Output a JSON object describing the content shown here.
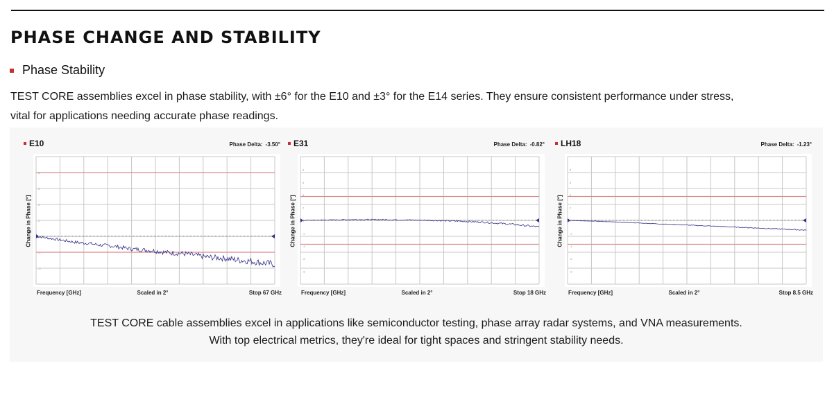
{
  "section": {
    "title": "PHASE CHANGE AND STABILITY",
    "subheading": "Phase Stability",
    "intro_line1": "TEST CORE assemblies excel in phase stability, with ±6° for the E10 and ±3° for the E14 series. They ensure consistent performance under stress,",
    "intro_line2": "vital for applications needing accurate phase readings."
  },
  "caption": {
    "line1": "TEST CORE cable assemblies excel in applications like semiconductor testing, phase array radar systems, and VNA measurements.",
    "line2": "With top electrical metrics, they're ideal for tight spaces and stringent stability needs."
  },
  "colors": {
    "accent": "#c8302f",
    "trace": "#2f2e86",
    "limit": "#d98a8a",
    "grid": "#c7c7c7"
  },
  "chart_data": [
    {
      "type": "line",
      "title": "E10",
      "phase_delta_label": "Phase Delta:",
      "phase_delta": "-3.50°",
      "xlabel": "Frequency [GHz]",
      "scale_label": "Scaled in 2°",
      "stop_label": "Stop 67 GHz",
      "ylabel": "Change in Phase [°]",
      "xlim": [
        0,
        67
      ],
      "ylim": [
        -6,
        10
      ],
      "y_tick_labels": [
        "8",
        "6",
        "4",
        "2",
        "0",
        "-2",
        "-4"
      ],
      "reference_line": 0,
      "limit_lines": [
        8,
        -2
      ],
      "series": [
        {
          "x": [
            0,
            3,
            6,
            9,
            12,
            15,
            18,
            21,
            24,
            27,
            30,
            33,
            36,
            39,
            42,
            45,
            48,
            51,
            54,
            57,
            60,
            63,
            67
          ],
          "values": [
            0.0,
            -0.2,
            -0.4,
            -0.6,
            -0.8,
            -0.9,
            -1.1,
            -1.2,
            -1.4,
            -1.6,
            -1.7,
            -1.8,
            -2.0,
            -2.1,
            -2.2,
            -2.4,
            -2.6,
            -2.7,
            -2.8,
            -3.0,
            -3.1,
            -3.3,
            -3.5
          ],
          "noise": 0.45
        }
      ]
    },
    {
      "type": "line",
      "title": "E31",
      "phase_delta_label": "Phase Delta:",
      "phase_delta": "-0.82°",
      "xlabel": "Frequency [GHz]",
      "scale_label": "Scaled in 2°",
      "stop_label": "Stop 18 GHz",
      "ylabel": "Change in Phase [°]",
      "xlim": [
        0,
        18
      ],
      "ylim": [
        -8,
        8
      ],
      "y_tick_labels": [
        "8",
        "6",
        "4",
        "2",
        "0",
        "-2",
        "-4",
        "-6",
        "-8"
      ],
      "reference_line": 0,
      "limit_lines": [
        3,
        -3
      ],
      "series": [
        {
          "x": [
            0,
            2,
            4,
            6,
            8,
            10,
            12,
            14,
            16,
            18
          ],
          "values": [
            0.0,
            0.05,
            0.1,
            0.1,
            0.05,
            0.0,
            -0.1,
            -0.25,
            -0.5,
            -0.82
          ],
          "noise": 0.12
        }
      ]
    },
    {
      "type": "line",
      "title": "LH18",
      "phase_delta_label": "Phase Delta:",
      "phase_delta": "-1.23°",
      "xlabel": "Frequency [GHz]",
      "scale_label": "Scaled in 2°",
      "stop_label": "Stop 8.5 GHz",
      "ylabel": "Change in Phase [°]",
      "xlim": [
        0,
        8.5
      ],
      "ylim": [
        -8,
        8
      ],
      "y_tick_labels": [
        "8",
        "6",
        "4",
        "2",
        "0",
        "-2",
        "-4",
        "-6",
        "-8"
      ],
      "reference_line": 0,
      "limit_lines": [
        3,
        -3
      ],
      "series": [
        {
          "x": [
            0,
            1,
            2,
            3,
            4,
            5,
            6,
            7,
            8,
            8.5
          ],
          "values": [
            0.0,
            -0.1,
            -0.25,
            -0.4,
            -0.55,
            -0.7,
            -0.85,
            -1.0,
            -1.15,
            -1.23
          ],
          "noise": 0.06
        }
      ]
    }
  ]
}
